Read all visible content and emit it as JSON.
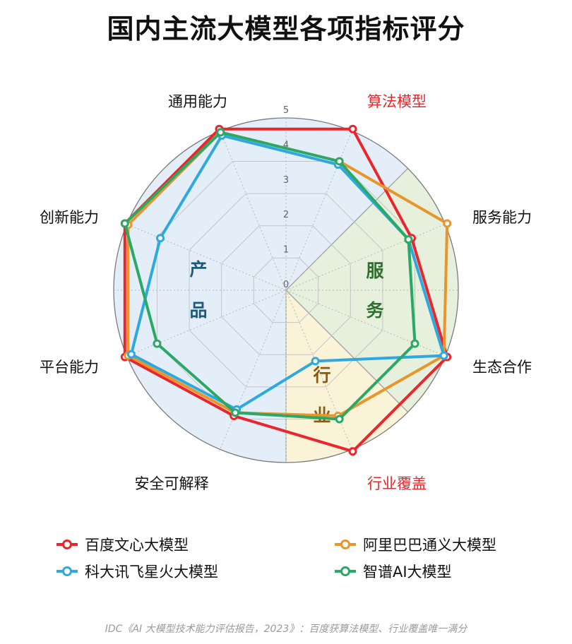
{
  "page": {
    "title": "国内主流大模型各项指标评分",
    "footnote": "IDC《AI 大模型技术能力评估报告，2023》：百度获算法模型、行业覆盖唯一满分"
  },
  "chart_data": {
    "type": "radar",
    "title": "国内主流大模型各项指标评分",
    "axes": [
      "算法模型",
      "服务能力",
      "生态合作",
      "行业覆盖",
      "安全可解释",
      "平台能力",
      "创新能力",
      "通用能力"
    ],
    "highlight_axes": [
      "算法模型",
      "行业覆盖"
    ],
    "highlight_color": "#e8262b",
    "axis_label_color": "#111111",
    "range": [
      0,
      5
    ],
    "tick_labels": [
      "0",
      "1",
      "2",
      "3",
      "4",
      "5"
    ],
    "grid": true,
    "regions": [
      {
        "label": [
          "产",
          "品"
        ],
        "axes": [
          "安全可解释",
          "平台能力",
          "创新能力",
          "通用能力"
        ],
        "fill": "#e3eef8",
        "text_color": "#1f5a7e"
      },
      {
        "label": [
          "服",
          "务"
        ],
        "axes": [
          "算法模型",
          "服务能力",
          "生态合作"
        ],
        "fill": "#e6f0dd",
        "text_color": "#2f6f2e"
      },
      {
        "label": [
          "行",
          "业"
        ],
        "axes": [
          "行业覆盖"
        ],
        "fill": "#fbf3d8",
        "text_color": "#8a5a12"
      }
    ],
    "series": [
      {
        "name": "百度文心大模型",
        "color": "#e8262b",
        "values": [
          5,
          3.9,
          5,
          5,
          3.9,
          5,
          5,
          5
        ]
      },
      {
        "name": "阿里巴巴通义大模型",
        "color": "#e8962b",
        "values": [
          4,
          5,
          4.9,
          3.9,
          3.8,
          4.9,
          4.9,
          4.9
        ]
      },
      {
        "name": "科大讯飞星火大模型",
        "color": "#2fa8e0",
        "values": [
          3.9,
          3.8,
          4.9,
          2.2,
          3.7,
          4.8,
          3.9,
          4.8
        ]
      },
      {
        "name": "智谱AI大模型",
        "color": "#2aa866",
        "values": [
          4,
          3.8,
          4,
          4,
          3.8,
          4,
          5,
          4.9
        ]
      }
    ],
    "legend_position": "bottom"
  }
}
